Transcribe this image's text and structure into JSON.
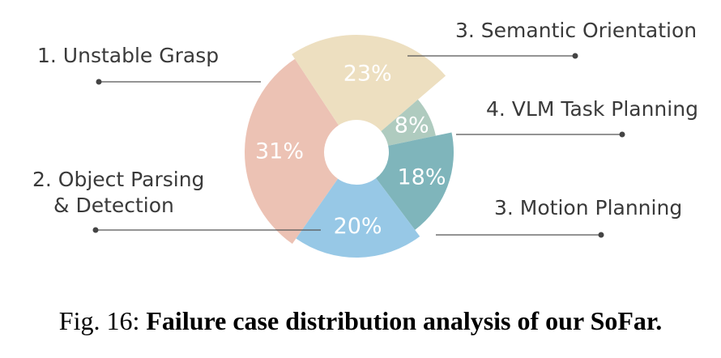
{
  "chart_data": {
    "type": "pie",
    "categories": [
      "1. Unstable Grasp",
      "3. Semantic Orientation",
      "4. VLM Task Planning",
      "3. Motion Planning",
      "2. Object Parsing & Detection"
    ],
    "values": [
      31,
      23,
      8,
      18,
      20
    ],
    "value_labels": [
      "31%",
      "23%",
      "8%",
      "18%",
      "20%"
    ],
    "colors": [
      "#ecc2b4",
      "#eddfc0",
      "#afcbbf",
      "#7fb5bb",
      "#97c8e6"
    ],
    "slice_radii": [
      138,
      145,
      100,
      120,
      130
    ],
    "label_lines": [
      [
        "1. Unstable Grasp"
      ],
      [
        "3. Semantic Orientation"
      ],
      [
        "4. VLM Task Planning"
      ],
      [
        "3. Motion Planning"
      ],
      [
        "2. Object Parsing",
        "& Detection"
      ]
    ],
    "legend": "callouts",
    "donut": true
  },
  "caption": {
    "prefix": "Fig. 16: ",
    "text": "Failure case distribution analysis of our SoFar."
  }
}
